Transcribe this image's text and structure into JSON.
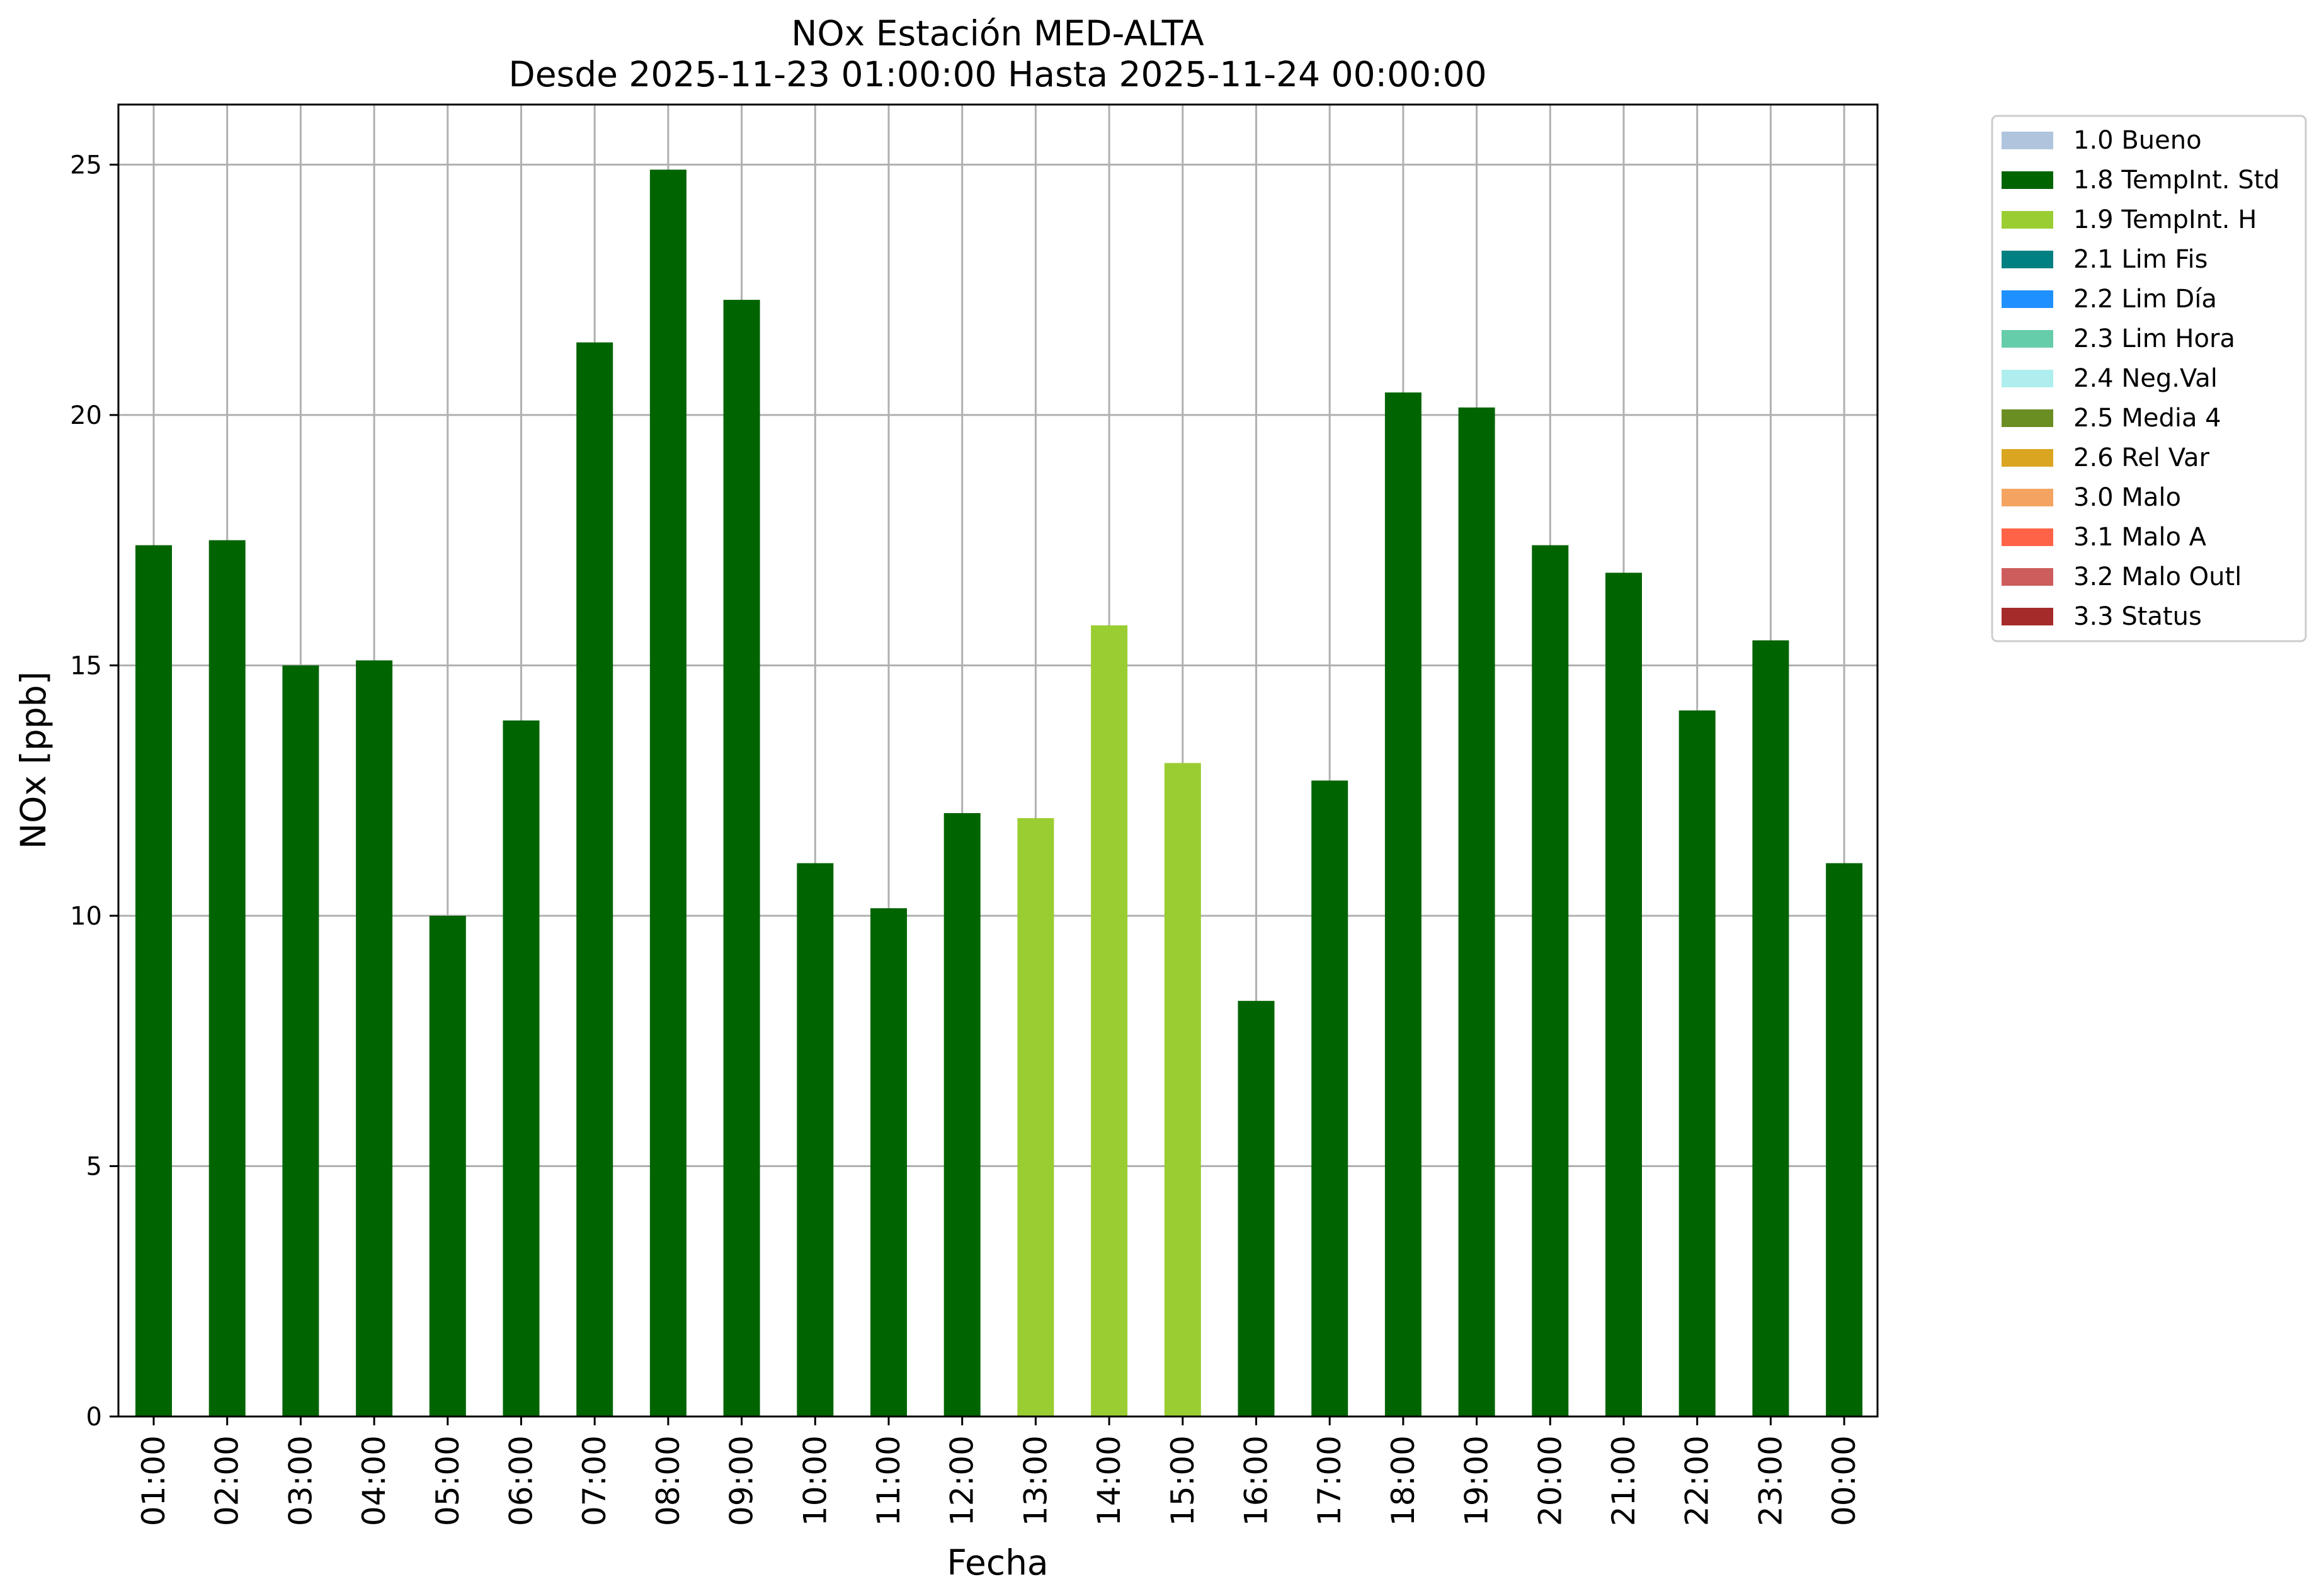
{
  "chart_data": {
    "type": "bar",
    "title": "NOx Estación MED-ALTA",
    "subtitle": "Desde 2025-11-23 01:00:00 Hasta 2025-11-24 00:00:00",
    "xlabel": "Fecha",
    "ylabel": "NOx [ppb]",
    "ylim": [
      0,
      26.2
    ],
    "yticks": [
      0,
      5,
      10,
      15,
      20,
      25
    ],
    "grid": true,
    "legend_position": "outside-top-right",
    "categories": [
      "01:00",
      "02:00",
      "03:00",
      "04:00",
      "05:00",
      "06:00",
      "07:00",
      "08:00",
      "09:00",
      "10:00",
      "11:00",
      "12:00",
      "13:00",
      "14:00",
      "15:00",
      "16:00",
      "17:00",
      "18:00",
      "19:00",
      "20:00",
      "21:00",
      "22:00",
      "23:00",
      "00:00"
    ],
    "values": [
      17.4,
      17.5,
      15.0,
      15.1,
      10.0,
      13.9,
      21.45,
      24.9,
      22.3,
      11.05,
      10.15,
      12.05,
      11.95,
      15.8,
      13.05,
      8.3,
      12.7,
      20.45,
      20.15,
      17.4,
      16.85,
      14.1,
      15.5,
      11.05
    ],
    "flags": [
      "1.8",
      "1.8",
      "1.8",
      "1.8",
      "1.8",
      "1.8",
      "1.8",
      "1.8",
      "1.8",
      "1.8",
      "1.8",
      "1.8",
      "1.9",
      "1.9",
      "1.9",
      "1.8",
      "1.8",
      "1.8",
      "1.8",
      "1.8",
      "1.8",
      "1.8",
      "1.8",
      "1.8"
    ],
    "legend": [
      {
        "code": "1.0",
        "label": "1.0 Bueno",
        "color": "#b0c4de"
      },
      {
        "code": "1.8",
        "label": "1.8 TempInt. Std",
        "color": "#006400"
      },
      {
        "code": "1.9",
        "label": "1.9 TempInt. H",
        "color": "#9acd32"
      },
      {
        "code": "2.1",
        "label": "2.1 Lim Fis",
        "color": "#008080"
      },
      {
        "code": "2.2",
        "label": "2.2 Lim Día",
        "color": "#1e90ff"
      },
      {
        "code": "2.3",
        "label": "2.3 Lim Hora",
        "color": "#66cdaa"
      },
      {
        "code": "2.4",
        "label": "2.4 Neg.Val",
        "color": "#afeeee"
      },
      {
        "code": "2.5",
        "label": "2.5 Media 4",
        "color": "#6b8e23"
      },
      {
        "code": "2.6",
        "label": "2.6 Rel Var",
        "color": "#daa520"
      },
      {
        "code": "3.0",
        "label": "3.0 Malo",
        "color": "#f4a460"
      },
      {
        "code": "3.1",
        "label": "3.1 Malo A",
        "color": "#ff6347"
      },
      {
        "code": "3.2",
        "label": "3.2 Malo Outl",
        "color": "#cd5c5c"
      },
      {
        "code": "3.3",
        "label": "3.3 Status",
        "color": "#a52a2a"
      }
    ]
  }
}
